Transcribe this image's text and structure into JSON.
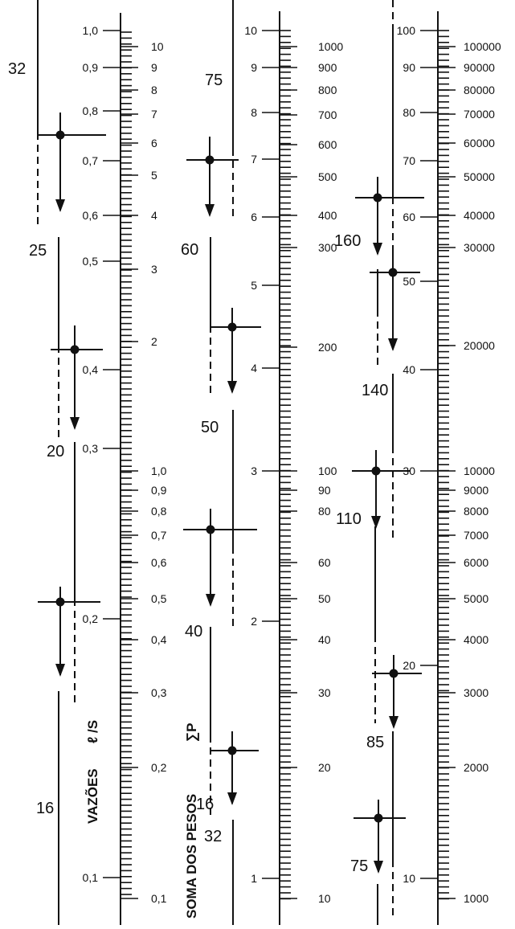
{
  "chart_data": {
    "type": "nomogram",
    "axis_title_flow": "VAZÕES",
    "axis_title_flow_unit": "ℓ /S",
    "axis_title_weights": "SOMA DOS PESOS",
    "axis_title_weights_symbol": "∑P",
    "scales": [
      {
        "name": "flow-scale-left",
        "labels": [
          "1,0",
          "0,9",
          "0,8",
          "0,7",
          "0,6",
          "0,5",
          "0,4",
          "0,3",
          "0,2",
          "0,1"
        ]
      },
      {
        "name": "weights-scale-left",
        "labels": [
          "10",
          "9",
          "8",
          "7",
          "6",
          "5",
          "4",
          "3",
          "2",
          "1,0",
          "0,9",
          "0,8",
          "0,7",
          "0,6",
          "0,5",
          "0,4",
          "0,3",
          "0,2",
          "0,1"
        ]
      },
      {
        "name": "flow-scale-middle",
        "labels": [
          "10",
          "9",
          "8",
          "7",
          "6",
          "5",
          "4",
          "3",
          "2",
          "1"
        ]
      },
      {
        "name": "weights-scale-middle",
        "labels": [
          "1000",
          "900",
          "800",
          "700",
          "600",
          "500",
          "400",
          "300",
          "200",
          "100",
          "90",
          "80",
          "60",
          "50",
          "40",
          "30",
          "20",
          "10"
        ]
      },
      {
        "name": "flow-scale-right",
        "labels": [
          "100",
          "90",
          "80",
          "70",
          "60",
          "50",
          "40",
          "30",
          "20",
          "10"
        ]
      },
      {
        "name": "weights-scale-right",
        "labels": [
          "100000",
          "90000",
          "80000",
          "70000",
          "60000",
          "50000",
          "40000",
          "30000",
          "20000",
          "10000",
          "9000",
          "8000",
          "7000",
          "6000",
          "5000",
          "4000",
          "3000",
          "2000",
          "1000"
        ]
      }
    ],
    "pipe_diameters": [
      "32",
      "25",
      "20",
      "16",
      "75",
      "60",
      "50",
      "40",
      "16",
      "32",
      "160",
      "140",
      "110",
      "85",
      "75"
    ]
  }
}
